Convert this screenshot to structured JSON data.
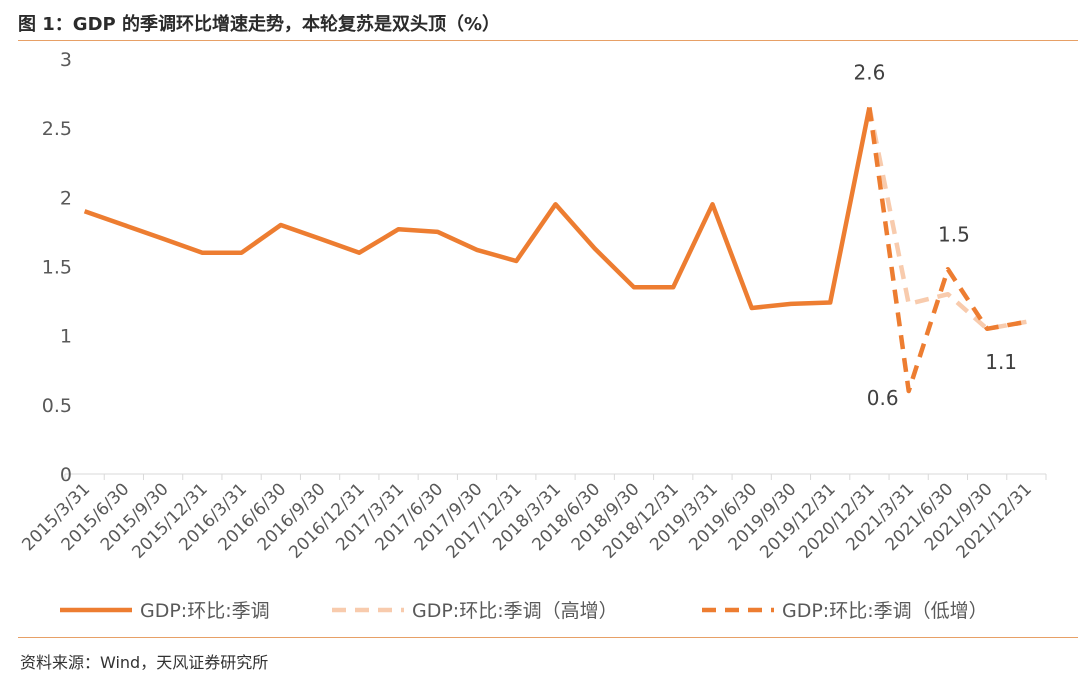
{
  "header": {
    "title": "图 1：GDP 的季调环比增速走势，本轮复苏是双头顶（%）"
  },
  "source": {
    "text": "资料来源：Wind，天风证券研究所"
  },
  "chart_data": {
    "type": "line",
    "title": "图 1：GDP 的季调环比增速走势，本轮复苏是双头顶（%）",
    "xlabel": "",
    "ylabel": "",
    "ylim": [
      0,
      3
    ],
    "yticks": [
      "0",
      "0.5",
      "1",
      "1.5",
      "2",
      "2.5",
      "3"
    ],
    "grid": false,
    "legend_position": "bottom",
    "categories": [
      "2015/3/31",
      "2015/6/30",
      "2015/9/30",
      "2015/12/31",
      "2016/3/31",
      "2016/6/30",
      "2016/9/30",
      "2016/12/31",
      "2017/3/31",
      "2017/6/30",
      "2017/9/30",
      "2017/12/31",
      "2018/3/31",
      "2018/6/30",
      "2018/9/30",
      "2018/12/31",
      "2019/3/31",
      "2019/6/30",
      "2019/9/30",
      "2019/12/31",
      "2020/12/31",
      "2021/3/31",
      "2021/6/30",
      "2021/9/30",
      "2021/12/31"
    ],
    "series": [
      {
        "name": "GDP:环比:季调",
        "color": "#ED7D31",
        "style": "solid",
        "values": [
          1.9,
          1.8,
          1.7,
          1.6,
          1.6,
          1.8,
          1.7,
          1.6,
          1.77,
          1.75,
          1.62,
          1.54,
          1.95,
          1.63,
          1.35,
          1.35,
          1.95,
          1.2,
          1.23,
          1.24,
          2.65,
          null,
          null,
          null,
          null
        ]
      },
      {
        "name": "GDP:环比:季调（高增）",
        "color": "#F8CBAD",
        "style": "dashed",
        "values": [
          null,
          null,
          null,
          null,
          null,
          null,
          null,
          null,
          null,
          null,
          null,
          null,
          null,
          null,
          null,
          null,
          null,
          null,
          null,
          null,
          2.65,
          1.23,
          1.3,
          1.05,
          1.1
        ]
      },
      {
        "name": "GDP:环比:季调（低增）",
        "color": "#ED7D31",
        "style": "dashed",
        "values": [
          null,
          null,
          null,
          null,
          null,
          null,
          null,
          null,
          null,
          null,
          null,
          null,
          null,
          null,
          null,
          null,
          null,
          null,
          null,
          null,
          2.65,
          0.6,
          1.48,
          1.05,
          1.1
        ]
      }
    ],
    "annotations": [
      {
        "text": "2.6",
        "x": "2020/12/31",
        "y": 2.65
      },
      {
        "text": "0.6",
        "x": "2021/3/31",
        "y": 0.6
      },
      {
        "text": "1.5",
        "x": "2021/6/30",
        "y": 1.48
      },
      {
        "text": "1.1",
        "x": "2021/9/30",
        "y": 1.05
      }
    ]
  }
}
